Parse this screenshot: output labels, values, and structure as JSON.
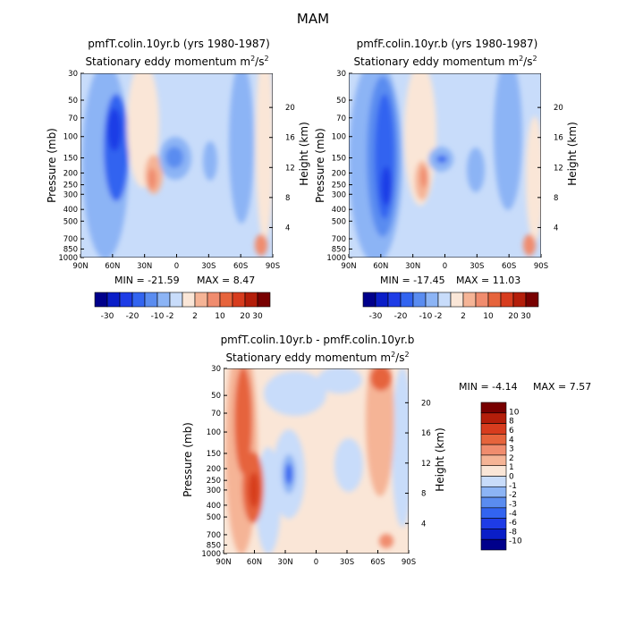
{
  "figure": {
    "title": "MAM"
  },
  "colors": {
    "panel_scale": [
      "#00008b",
      "#0a1ec8",
      "#1e3ce6",
      "#3264f0",
      "#5a8cf0",
      "#8cb4f5",
      "#c8dcfa",
      "#fae6d7",
      "#f5b496",
      "#f08c6e",
      "#e6643c",
      "#d73c1e",
      "#b41e0a",
      "#780000"
    ],
    "diff_scale": [
      "#00008b",
      "#0a1ec8",
      "#1e3ce6",
      "#3264f0",
      "#5a8cf0",
      "#8cb4f5",
      "#c8dcfa",
      "#fae6d7",
      "#f5b496",
      "#f08c6e",
      "#e6643c",
      "#d73c1e",
      "#b41e0a",
      "#780000"
    ]
  },
  "chart_data": [
    {
      "type": "heatmap",
      "title": "pmfT.colin.10yr.b (yrs 1980-1987)",
      "subtitle": "Stationary eddy momentum",
      "units_base": "m",
      "units_exp1": "2",
      "units_mid": "/s",
      "units_exp2": "2",
      "ylabel": "Pressure (mb)",
      "ylabel_right": "Height (km)",
      "x_ticks": [
        "90N",
        "60N",
        "30N",
        "0",
        "30S",
        "60S",
        "90S"
      ],
      "y_ticks": [
        "30",
        "50",
        "70",
        "100",
        "150",
        "200",
        "250",
        "300",
        "400",
        "500",
        "700",
        "850",
        "1000"
      ],
      "y_ticks_right": [
        "20",
        "16",
        "12",
        "8",
        "4"
      ],
      "min_label": "MIN = -21.59",
      "max_label": "MAX =   8.47",
      "min": -21.59,
      "max": 8.47,
      "levels": [
        "-30",
        "-20",
        "-10",
        "-2",
        "2",
        "10",
        "20",
        "30"
      ]
    },
    {
      "type": "heatmap",
      "title": "pmfF.colin.10yr.b (yrs 1980-1987)",
      "subtitle": "Stationary eddy momentum",
      "units_base": "m",
      "units_exp1": "2",
      "units_mid": "/s",
      "units_exp2": "2",
      "ylabel": "Pressure (mb)",
      "ylabel_right": "Height (km)",
      "x_ticks": [
        "90N",
        "60N",
        "30N",
        "0",
        "30S",
        "60S",
        "90S"
      ],
      "y_ticks": [
        "30",
        "50",
        "70",
        "100",
        "150",
        "200",
        "250",
        "300",
        "400",
        "500",
        "700",
        "850",
        "1000"
      ],
      "y_ticks_right": [
        "20",
        "16",
        "12",
        "8",
        "4"
      ],
      "min_label": "MIN = -17.45",
      "max_label": "MAX = 11.03",
      "min": -17.45,
      "max": 11.03,
      "levels": [
        "-30",
        "-20",
        "-10",
        "-2",
        "2",
        "10",
        "20",
        "30"
      ]
    },
    {
      "type": "heatmap",
      "title": "pmfT.colin.10yr.b - pmfF.colin.10yr.b",
      "subtitle": "Stationary eddy momentum",
      "units_base": "m",
      "units_exp1": "2",
      "units_mid": "/s",
      "units_exp2": "2",
      "ylabel": "Pressure (mb)",
      "ylabel_right": "Height (km)",
      "x_ticks": [
        "90N",
        "60N",
        "30N",
        "0",
        "30S",
        "60S",
        "90S"
      ],
      "y_ticks": [
        "30",
        "50",
        "70",
        "100",
        "150",
        "200",
        "250",
        "300",
        "400",
        "500",
        "700",
        "850",
        "1000"
      ],
      "y_ticks_right": [
        "20",
        "16",
        "12",
        "8",
        "4"
      ],
      "min_label": "MIN =   -4.14",
      "max_label": "MAX =   7.57",
      "min": -4.14,
      "max": 7.57,
      "levels": [
        "10",
        "8",
        "6",
        "4",
        "3",
        "2",
        "1",
        "0",
        "-1",
        "-2",
        "-3",
        "-4",
        "-6",
        "-8",
        "-10"
      ]
    }
  ]
}
